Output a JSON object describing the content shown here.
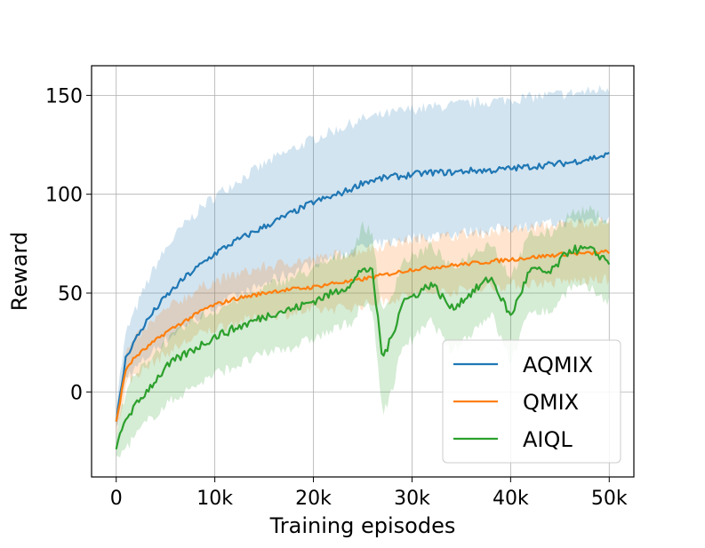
{
  "chart_data": {
    "type": "line",
    "title": "",
    "xlabel": "Training episodes",
    "ylabel": "Reward",
    "xlim": [
      -2500,
      52500
    ],
    "ylim": [
      -43,
      165
    ],
    "grid": true,
    "legend_position": "lower-right",
    "x_ticks": [
      0,
      10000,
      20000,
      30000,
      40000,
      50000
    ],
    "x_tick_labels": [
      "0",
      "10k",
      "20k",
      "30k",
      "40k",
      "50k"
    ],
    "y_ticks": [
      0,
      50,
      100,
      150
    ],
    "y_tick_labels": [
      "0",
      "50",
      "100",
      "150"
    ],
    "x": [
      0,
      1000,
      2000,
      3000,
      4000,
      5000,
      6000,
      7000,
      8000,
      9000,
      10000,
      12000,
      14000,
      16000,
      18000,
      20000,
      22000,
      24000,
      25000,
      26000,
      27000,
      28000,
      29000,
      30000,
      32000,
      34000,
      36000,
      38000,
      40000,
      42000,
      44000,
      46000,
      48000,
      50000
    ],
    "series": [
      {
        "name": "AQMIX",
        "color": "#1f77b4",
        "values": [
          -15,
          18,
          27,
          35,
          42,
          48,
          53,
          58,
          62,
          66,
          70,
          76,
          81,
          86,
          91,
          96,
          99,
          103,
          106,
          107,
          108,
          109,
          109,
          110,
          111,
          111,
          112,
          112,
          113,
          114,
          115,
          116,
          118,
          120
        ],
        "lower": [
          -20,
          8,
          12,
          17,
          22,
          26,
          30,
          34,
          37,
          40,
          43,
          48,
          52,
          57,
          61,
          65,
          68,
          71,
          73,
          74,
          75,
          76,
          77,
          78,
          79,
          80,
          81,
          82,
          83,
          84,
          85,
          86,
          87,
          88
        ],
        "upper": [
          -5,
          30,
          42,
          54,
          64,
          72,
          79,
          85,
          90,
          95,
          99,
          106,
          112,
          118,
          123,
          128,
          132,
          136,
          138,
          139,
          140,
          141,
          142,
          143,
          144,
          145,
          146,
          147,
          148,
          149,
          150,
          151,
          152,
          154
        ]
      },
      {
        "name": "QMIX",
        "color": "#ff7f0e",
        "values": [
          -15,
          12,
          18,
          22,
          26,
          30,
          33,
          36,
          39,
          42,
          44,
          47,
          49,
          51,
          52,
          53,
          55,
          56,
          57,
          58,
          59,
          60,
          61,
          62,
          63,
          64,
          65,
          66,
          67,
          68,
          69,
          70,
          70,
          71
        ],
        "lower": [
          -22,
          4,
          9,
          12,
          16,
          19,
          22,
          25,
          28,
          30,
          32,
          35,
          37,
          39,
          40,
          41,
          42,
          43,
          44,
          45,
          46,
          47,
          48,
          49,
          50,
          51,
          52,
          53,
          54,
          55,
          55,
          56,
          56,
          57
        ],
        "upper": [
          -8,
          20,
          27,
          32,
          37,
          41,
          45,
          48,
          51,
          54,
          56,
          59,
          62,
          64,
          66,
          67,
          69,
          71,
          72,
          73,
          74,
          75,
          76,
          77,
          78,
          79,
          80,
          81,
          82,
          83,
          84,
          85,
          86,
          86
        ]
      },
      {
        "name": "AIQL",
        "color": "#2ca02c",
        "values": [
          -29,
          -13,
          -7,
          0,
          6,
          12,
          16,
          19,
          22,
          25,
          28,
          32,
          36,
          40,
          42,
          46,
          50,
          55,
          63,
          60,
          17,
          28,
          46,
          48,
          55,
          42,
          50,
          58,
          38,
          62,
          60,
          72,
          72,
          66
        ],
        "lower": [
          -35,
          -28,
          -22,
          -16,
          -11,
          -7,
          -3,
          0,
          3,
          6,
          9,
          13,
          17,
          21,
          23,
          27,
          31,
          36,
          44,
          41,
          -10,
          0,
          24,
          26,
          36,
          20,
          30,
          40,
          15,
          42,
          40,
          53,
          52,
          46
        ],
        "upper": [
          -22,
          2,
          8,
          15,
          20,
          25,
          29,
          33,
          36,
          39,
          41,
          46,
          50,
          55,
          58,
          62,
          67,
          72,
          84,
          80,
          38,
          50,
          66,
          68,
          74,
          62,
          70,
          76,
          58,
          80,
          80,
          90,
          92,
          86
        ]
      }
    ]
  }
}
